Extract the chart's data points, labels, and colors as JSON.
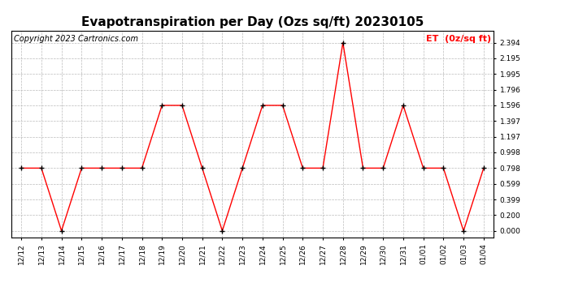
{
  "title": "Evapotranspiration per Day (Ozs sq/ft) 20230105",
  "copyright": "Copyright 2023 Cartronics.com",
  "legend_label": "ET  (0z/sq ft)",
  "x_labels": [
    "12/12",
    "12/13",
    "12/14",
    "12/15",
    "12/16",
    "12/17",
    "12/18",
    "12/19",
    "12/20",
    "12/21",
    "12/22",
    "12/23",
    "12/24",
    "12/25",
    "12/26",
    "12/27",
    "12/28",
    "12/29",
    "12/30",
    "12/31",
    "01/01",
    "01/02",
    "01/03",
    "01/04"
  ],
  "y_values": [
    0.798,
    0.798,
    0.0,
    0.798,
    0.798,
    0.798,
    0.798,
    1.596,
    1.596,
    0.798,
    0.0,
    0.798,
    1.596,
    1.596,
    0.798,
    0.798,
    2.394,
    0.798,
    0.798,
    1.596,
    0.798,
    0.798,
    0.0,
    0.798
  ],
  "y_ticks": [
    0.0,
    0.2,
    0.399,
    0.599,
    0.798,
    0.998,
    1.197,
    1.397,
    1.596,
    1.796,
    1.995,
    2.195,
    2.394
  ],
  "line_color": "#ff0000",
  "marker_color": "#000000",
  "bg_color": "#ffffff",
  "grid_color": "#bbbbbb",
  "title_fontsize": 11,
  "copyright_fontsize": 7,
  "legend_fontsize": 8,
  "tick_fontsize": 6.5,
  "legend_color": "#ff0000",
  "ylim": [
    -0.08,
    2.55
  ]
}
